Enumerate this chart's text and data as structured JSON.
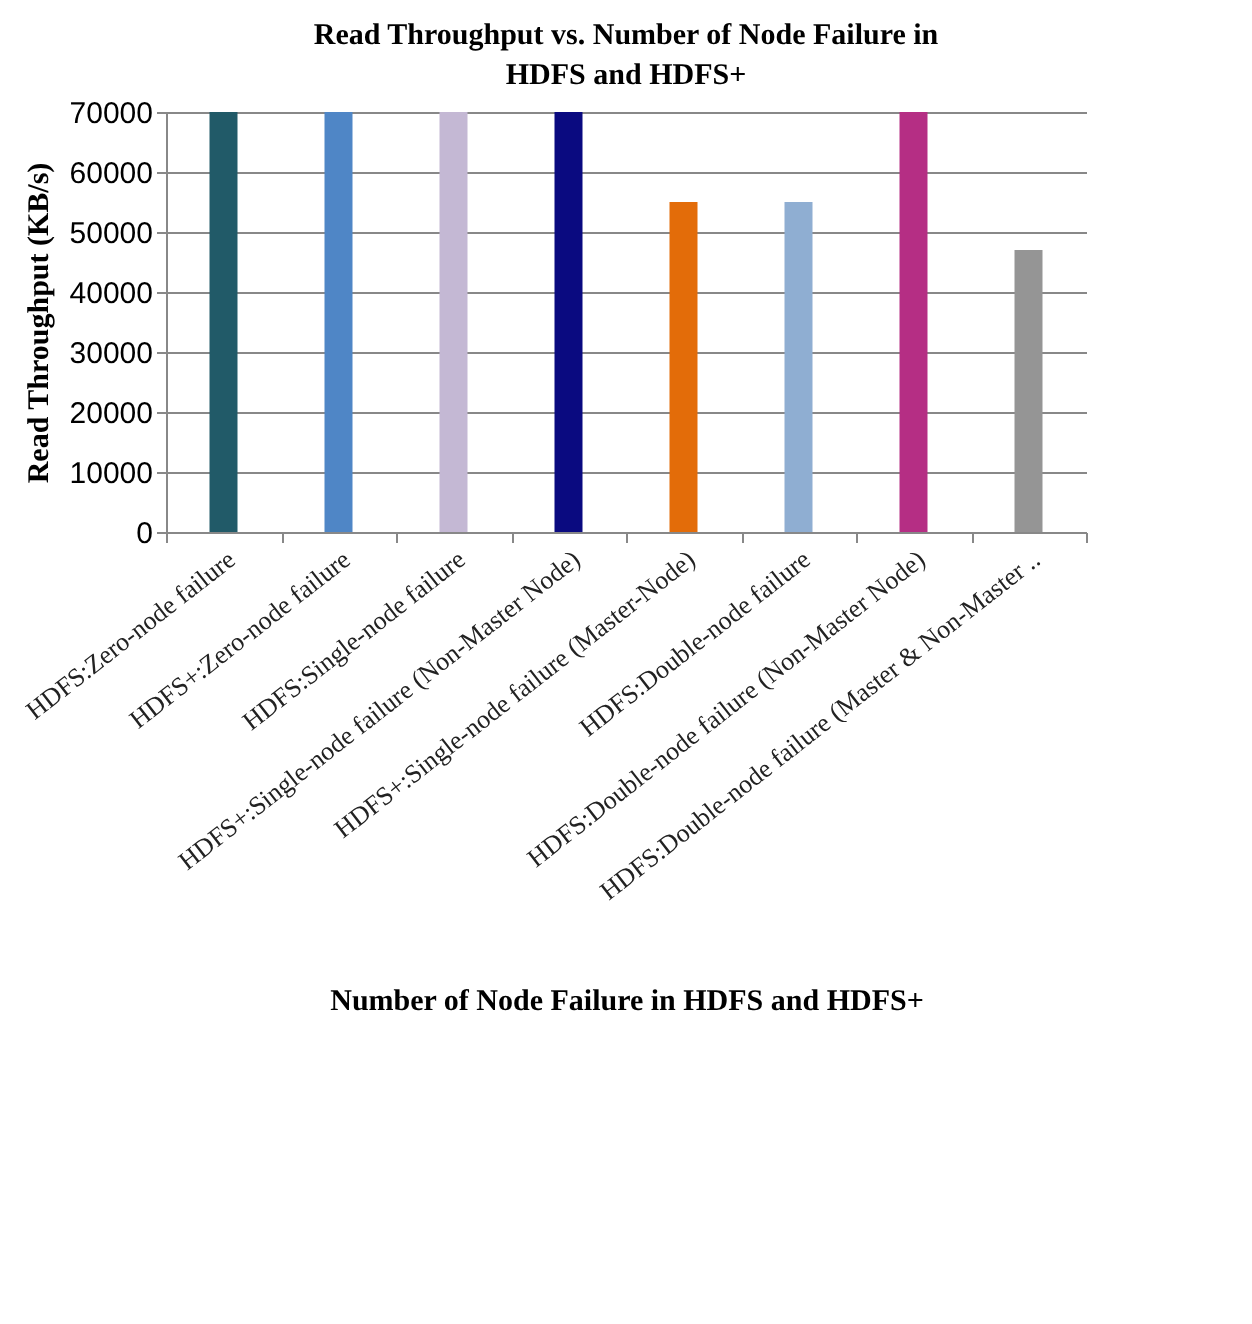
{
  "chart_data": {
    "type": "bar",
    "title": "Read Throughput vs. Number of Node Failure in HDFS and HDFS+",
    "xlabel": "Number of Node Failure in HDFS and HDFS+",
    "ylabel": "Read Throughput (KB/s)",
    "categories": [
      "HDFS:Zero-node failure",
      "HDFS+:Zero-node failure",
      "HDFS:Single-node failure",
      "HDFS+:Single-node failure (Non-Master Node)",
      "HDFS+:Single-node failure (Master-Node)",
      "HDFS:Double-node failure",
      "HDFS:Double-node failure (Non-Master Node)",
      "HDFS:Double-node failure (Master & Non-Master .."
    ],
    "values": [
      70000,
      70000,
      70000,
      70000,
      55000,
      55000,
      70000,
      47000
    ],
    "colors": [
      "#215a68",
      "#4f86c6",
      "#c4b8d4",
      "#0a0a80",
      "#e36c09",
      "#8faed2",
      "#b52e84",
      "#959595"
    ],
    "ylim": [
      0,
      70000
    ],
    "yticks": [
      0,
      10000,
      20000,
      30000,
      40000,
      50000,
      60000,
      70000
    ],
    "grid": "y"
  }
}
